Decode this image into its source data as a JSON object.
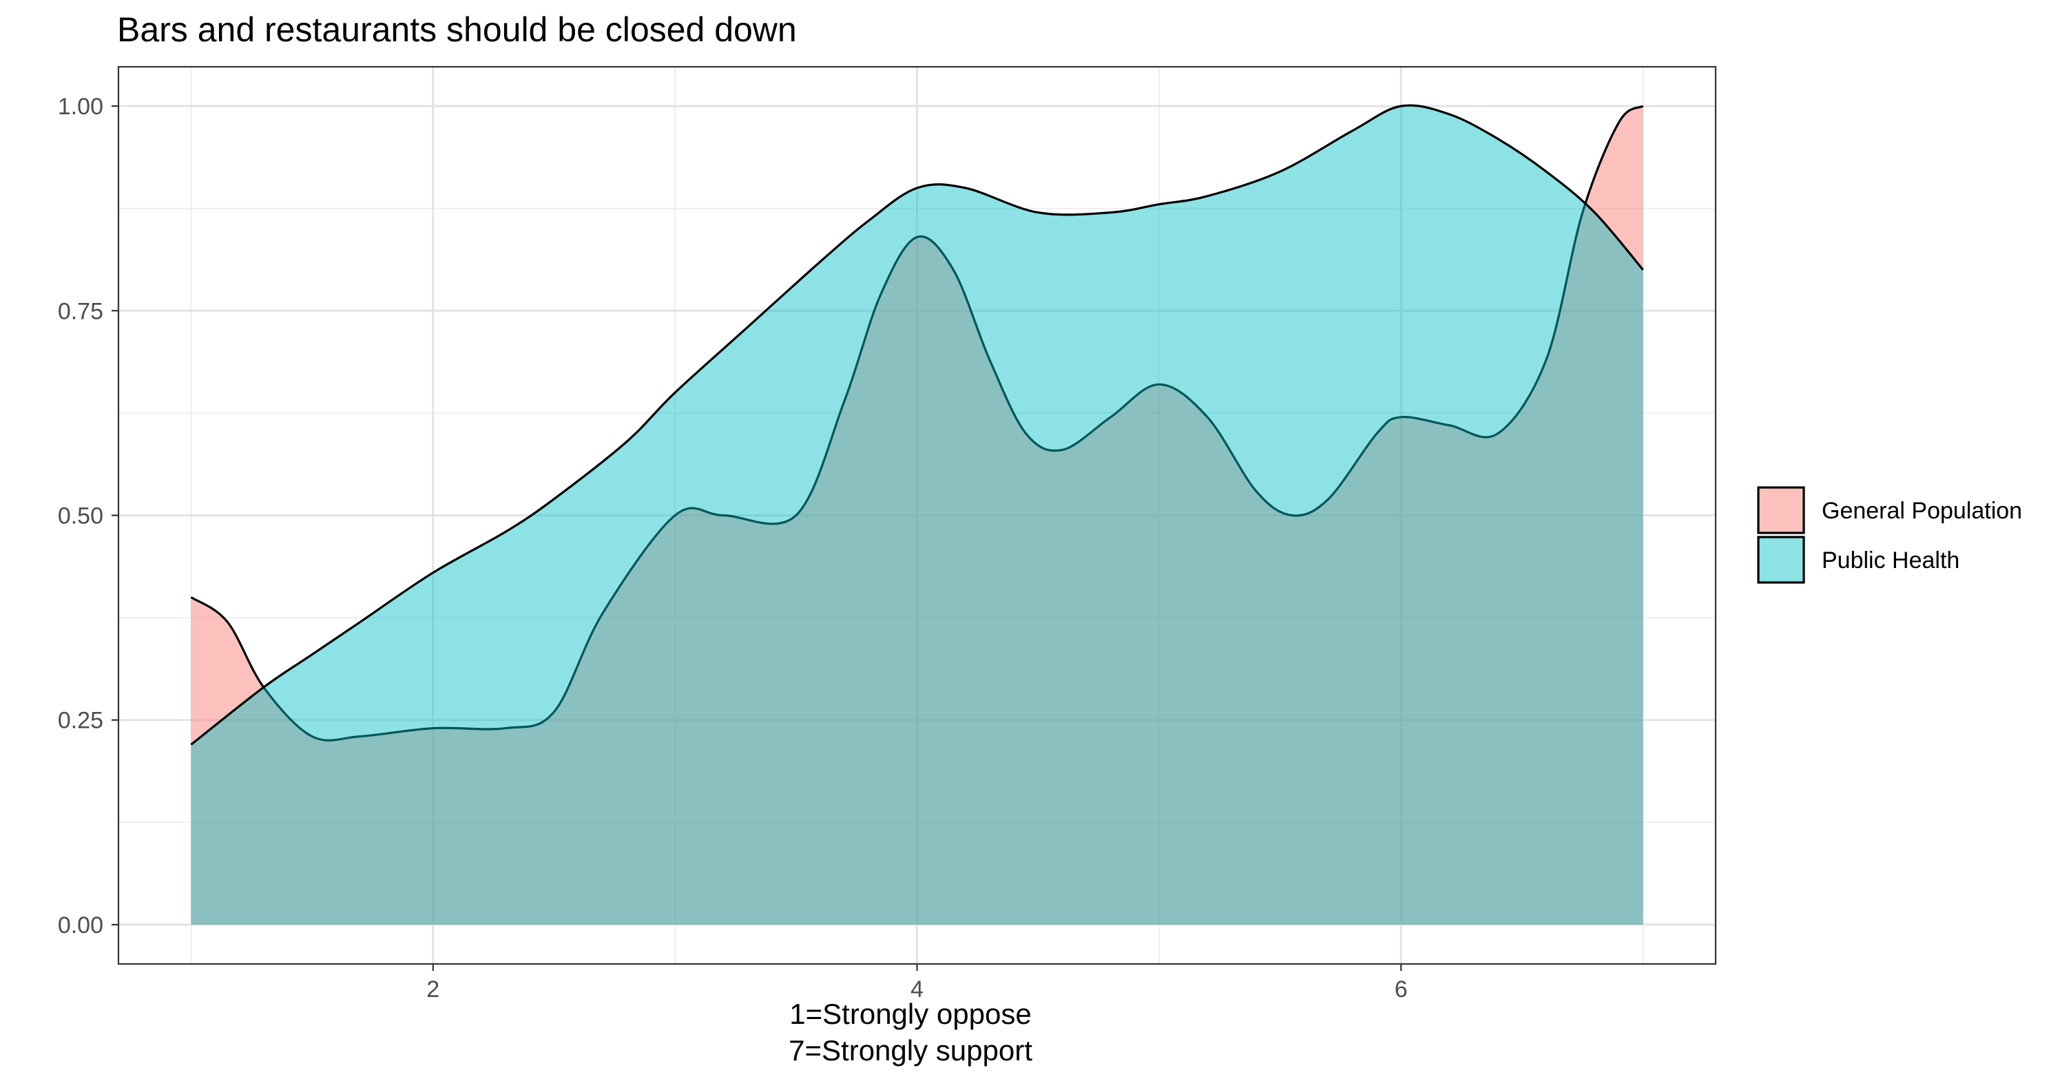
{
  "chart_data": {
    "type": "area",
    "title": "Bars and restaurants should be closed down",
    "xlabel_lines": [
      "1=Strongly oppose",
      "7=Strongly support"
    ],
    "ylabel": "",
    "xlim": [
      0.7,
      7.3
    ],
    "ylim": [
      -0.048,
      1.048
    ],
    "x_ticks": [
      2,
      4,
      6
    ],
    "x_minor_ticks": [
      1,
      3,
      5,
      7
    ],
    "y_ticks": [
      0,
      0.25,
      0.5,
      0.75,
      1.0
    ],
    "y_tick_labels": [
      "0.00",
      "0.25",
      "0.50",
      "0.75",
      "1.00"
    ],
    "y_minor_ticks": [
      0.125,
      0.375,
      0.625,
      0.875
    ],
    "grid": true,
    "legend_position": "right",
    "series": [
      {
        "name": "General Population",
        "color": "#F8766D",
        "x": [
          1.0,
          1.15,
          1.3,
          1.5,
          1.7,
          2.0,
          2.3,
          2.5,
          2.7,
          3.0,
          3.2,
          3.5,
          3.7,
          3.85,
          4.0,
          4.15,
          4.3,
          4.45,
          4.6,
          4.8,
          5.0,
          5.2,
          5.4,
          5.55,
          5.7,
          5.9,
          6.0,
          6.2,
          6.4,
          6.6,
          6.75,
          6.9,
          7.0
        ],
        "y": [
          0.4,
          0.37,
          0.29,
          0.23,
          0.23,
          0.24,
          0.24,
          0.26,
          0.38,
          0.5,
          0.5,
          0.5,
          0.64,
          0.77,
          0.84,
          0.8,
          0.69,
          0.6,
          0.58,
          0.62,
          0.66,
          0.62,
          0.53,
          0.5,
          0.52,
          0.6,
          0.62,
          0.61,
          0.6,
          0.69,
          0.87,
          0.98,
          1.0
        ]
      },
      {
        "name": "Public Health",
        "color": "#00BFC4",
        "x": [
          1.0,
          1.3,
          1.5,
          1.7,
          2.0,
          2.3,
          2.5,
          2.8,
          3.0,
          3.3,
          3.6,
          3.8,
          4.0,
          4.2,
          4.5,
          4.8,
          5.0,
          5.2,
          5.5,
          5.8,
          6.0,
          6.2,
          6.4,
          6.6,
          6.8,
          7.0
        ],
        "y": [
          0.22,
          0.29,
          0.33,
          0.37,
          0.43,
          0.48,
          0.52,
          0.59,
          0.65,
          0.73,
          0.81,
          0.86,
          0.9,
          0.9,
          0.87,
          0.87,
          0.88,
          0.89,
          0.92,
          0.97,
          1.0,
          0.99,
          0.96,
          0.92,
          0.87,
          0.8
        ]
      }
    ]
  }
}
